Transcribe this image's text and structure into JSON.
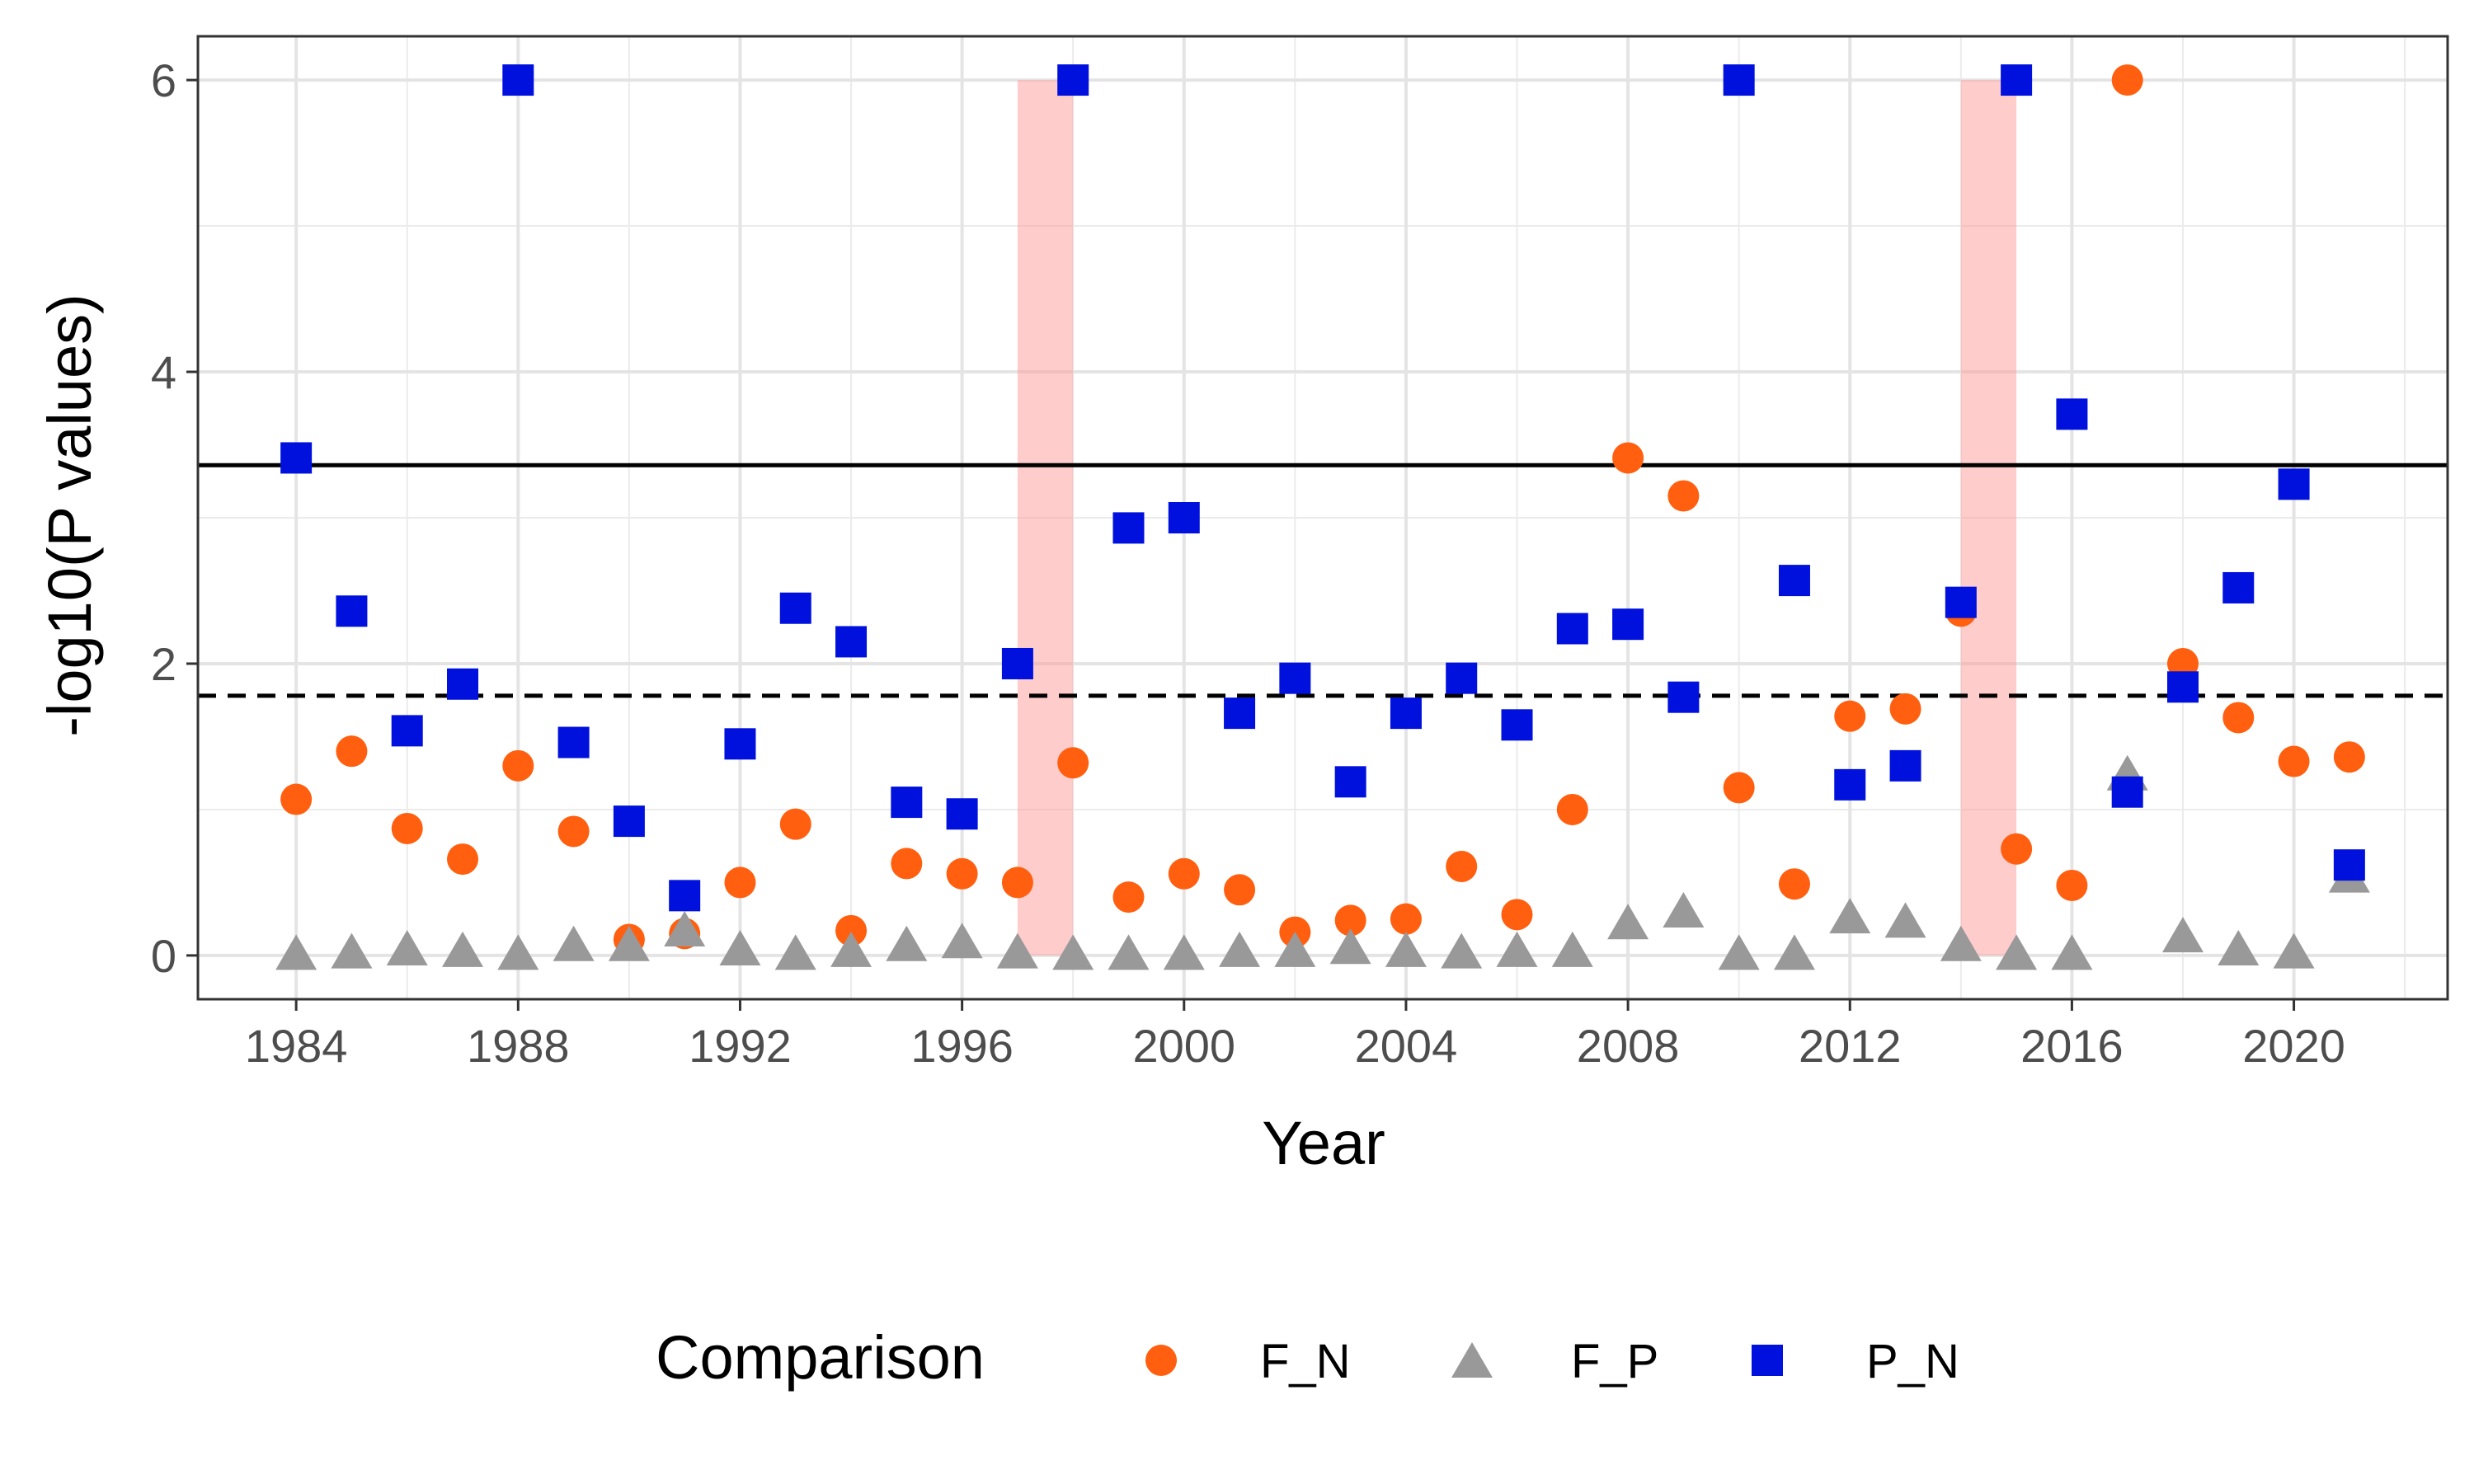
{
  "chart_data": {
    "type": "scatter",
    "title": "",
    "xlabel": "Year",
    "ylabel": "-log10(P values)",
    "xlim": [
      1982.3,
      1984.0
    ],
    "ylim": [
      -0.3,
      6.3
    ],
    "x_ticks": [
      1984,
      1988,
      1992,
      1996,
      2000,
      2004,
      2008,
      2012,
      2016,
      2020
    ],
    "y_ticks": [
      0,
      2,
      4,
      6
    ],
    "grid": true,
    "legend": {
      "title": "Comparison",
      "position": "bottom"
    },
    "reference_lines": [
      {
        "style": "solid",
        "y": 3.36
      },
      {
        "style": "dashed",
        "y": 1.78
      }
    ],
    "shaded_regions": [
      {
        "x_start": 1997,
        "x_end": 1998,
        "y_top": 6,
        "color": "#ff9999"
      },
      {
        "x_start": 2014,
        "x_end": 2015,
        "y_top": 6,
        "color": "#ff9999"
      }
    ],
    "series": [
      {
        "name": "F_N",
        "marker": "circle",
        "color": "#ff5f0f",
        "points": [
          [
            1984,
            1.07
          ],
          [
            1985,
            1.4
          ],
          [
            1986,
            0.87
          ],
          [
            1987,
            0.66
          ],
          [
            1988,
            1.3
          ],
          [
            1989,
            0.85
          ],
          [
            1990,
            0.11
          ],
          [
            1991,
            0.15
          ],
          [
            1992,
            0.5
          ],
          [
            1993,
            0.9
          ],
          [
            1994,
            0.17
          ],
          [
            1995,
            0.63
          ],
          [
            1996,
            0.56
          ],
          [
            1997,
            0.5
          ],
          [
            1998,
            1.32
          ],
          [
            1999,
            0.4
          ],
          [
            2000,
            0.56
          ],
          [
            2001,
            0.45
          ],
          [
            2002,
            0.16
          ],
          [
            2003,
            0.24
          ],
          [
            2004,
            0.25
          ],
          [
            2005,
            0.61
          ],
          [
            2006,
            0.28
          ],
          [
            2007,
            1.0
          ],
          [
            2008,
            3.41
          ],
          [
            2009,
            3.15
          ],
          [
            2010,
            1.15
          ],
          [
            2011,
            0.49
          ],
          [
            2012,
            1.64
          ],
          [
            2013,
            1.69
          ],
          [
            2014,
            2.36
          ],
          [
            2015,
            0.73
          ],
          [
            2016,
            0.48
          ],
          [
            2017,
            6.0
          ],
          [
            2018,
            2.0
          ],
          [
            2019,
            1.63
          ],
          [
            2020,
            1.33
          ],
          [
            2021,
            1.36
          ]
        ]
      },
      {
        "name": "F_P",
        "marker": "triangle",
        "color": "#999999",
        "points": [
          [
            1984,
            0.02
          ],
          [
            1985,
            0.03
          ],
          [
            1986,
            0.05
          ],
          [
            1987,
            0.04
          ],
          [
            1988,
            0.02
          ],
          [
            1989,
            0.08
          ],
          [
            1990,
            0.08
          ],
          [
            1991,
            0.18
          ],
          [
            1992,
            0.05
          ],
          [
            1993,
            0.02
          ],
          [
            1994,
            0.04
          ],
          [
            1995,
            0.08
          ],
          [
            1996,
            0.1
          ],
          [
            1997,
            0.03
          ],
          [
            1998,
            0.02
          ],
          [
            1999,
            0.02
          ],
          [
            2000,
            0.02
          ],
          [
            2001,
            0.04
          ],
          [
            2002,
            0.04
          ],
          [
            2003,
            0.06
          ],
          [
            2004,
            0.04
          ],
          [
            2005,
            0.03
          ],
          [
            2006,
            0.04
          ],
          [
            2007,
            0.04
          ],
          [
            2008,
            0.23
          ],
          [
            2009,
            0.31
          ],
          [
            2010,
            0.02
          ],
          [
            2011,
            0.02
          ],
          [
            2012,
            0.27
          ],
          [
            2013,
            0.24
          ],
          [
            2014,
            0.08
          ],
          [
            2015,
            0.02
          ],
          [
            2016,
            0.02
          ],
          [
            2017,
            1.25
          ],
          [
            2018,
            0.14
          ],
          [
            2019,
            0.05
          ],
          [
            2020,
            0.03
          ],
          [
            2021,
            0.55
          ]
        ]
      },
      {
        "name": "P_N",
        "marker": "square",
        "color": "#0011dd",
        "points": [
          [
            1984,
            3.41
          ],
          [
            1985,
            2.36
          ],
          [
            1986,
            1.54
          ],
          [
            1987,
            1.86
          ],
          [
            1988,
            6.0
          ],
          [
            1989,
            1.46
          ],
          [
            1990,
            0.92
          ],
          [
            1991,
            0.41
          ],
          [
            1992,
            1.45
          ],
          [
            1993,
            2.38
          ],
          [
            1994,
            2.15
          ],
          [
            1995,
            1.05
          ],
          [
            1996,
            0.97
          ],
          [
            1997,
            2.0
          ],
          [
            1998,
            6.0
          ],
          [
            1999,
            2.93
          ],
          [
            2000,
            3.0
          ],
          [
            2001,
            1.66
          ],
          [
            2002,
            1.9
          ],
          [
            2003,
            1.19
          ],
          [
            2004,
            1.66
          ],
          [
            2005,
            1.9
          ],
          [
            2006,
            1.58
          ],
          [
            2007,
            2.24
          ],
          [
            2008,
            2.27
          ],
          [
            2009,
            1.77
          ],
          [
            2010,
            6.0
          ],
          [
            2011,
            2.57
          ],
          [
            2012,
            1.17
          ],
          [
            2013,
            1.3
          ],
          [
            2014,
            2.42
          ],
          [
            2015,
            6.0
          ],
          [
            2016,
            3.71
          ],
          [
            2017,
            1.12
          ],
          [
            2018,
            1.84
          ],
          [
            2019,
            2.52
          ],
          [
            2020,
            3.23
          ],
          [
            2021,
            0.62
          ]
        ]
      }
    ]
  }
}
